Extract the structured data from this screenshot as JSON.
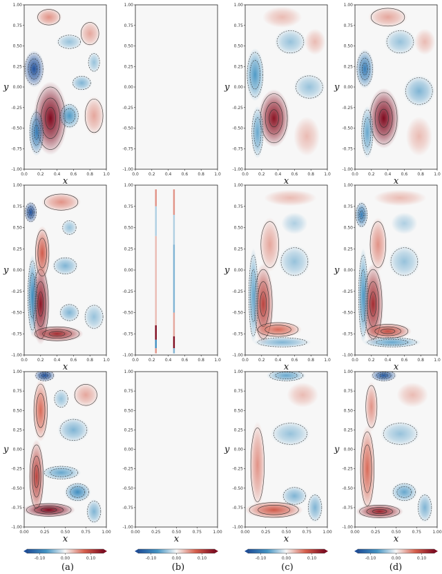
{
  "figure": {
    "panel_labels": [
      "(a)",
      "(b)",
      "(c)",
      "(d)"
    ],
    "xlabel": "x",
    "ylabel": "y"
  },
  "chart_data": {
    "type": "heatmap",
    "rows": 3,
    "columns": 4,
    "colormap": {
      "low": "#1f4f99",
      "mid": "#f7f7f7",
      "high": "#7f0a1f"
    },
    "colorbar": {
      "range": [
        -0.15,
        0.15
      ],
      "ticks": [
        -0.1,
        0.0,
        0.1
      ],
      "tick_labels": [
        "-0.10",
        "0.00",
        "0.10"
      ]
    },
    "column_settings": [
      {
        "label": "(a)",
        "colorbar_ticks": [
          "-0.10",
          "0.00",
          "0.10"
        ]
      },
      {
        "label": "(b)",
        "colorbar_ticks": [
          "-0.10",
          "0.00",
          "0.10"
        ]
      },
      {
        "label": "(c)",
        "colorbar_ticks": [
          "-0.10",
          "0.00",
          "0.10"
        ]
      },
      {
        "label": "(d)",
        "colorbar_ticks": [
          "-0.10",
          "0.00",
          "0.10"
        ]
      }
    ],
    "axes": {
      "x_ticks_rows_1_2": [
        "0.0",
        "0.2",
        "0.4",
        "0.6",
        "0.8",
        "1.0"
      ],
      "x_ticks_row_3": [
        "0.00",
        "0.25",
        "0.50",
        "0.75",
        "1.00"
      ],
      "y_ticks": [
        "1.00",
        "0.75",
        "0.50",
        "0.25",
        "0.00",
        "-0.25",
        "-0.50",
        "-0.75",
        "-1.00"
      ],
      "xlim": [
        0,
        1
      ],
      "ylim": [
        -1,
        1
      ]
    },
    "panels": [
      {
        "row": 0,
        "col": 0,
        "blobs": [
          {
            "x": 0.32,
            "y": -0.38,
            "sx": 0.13,
            "sy": 0.28,
            "a": 0.16
          },
          {
            "x": 0.12,
            "y": 0.22,
            "sx": 0.08,
            "sy": 0.14,
            "a": -0.15
          },
          {
            "x": 0.15,
            "y": -0.55,
            "sx": 0.06,
            "sy": 0.18,
            "a": -0.1
          },
          {
            "x": 0.55,
            "y": -0.35,
            "sx": 0.08,
            "sy": 0.1,
            "a": -0.07
          },
          {
            "x": 0.7,
            "y": 0.05,
            "sx": 0.08,
            "sy": 0.06,
            "a": -0.05
          },
          {
            "x": 0.55,
            "y": 0.55,
            "sx": 0.1,
            "sy": 0.06,
            "a": -0.04
          },
          {
            "x": 0.8,
            "y": 0.65,
            "sx": 0.08,
            "sy": 0.1,
            "a": 0.04
          },
          {
            "x": 0.85,
            "y": -0.35,
            "sx": 0.08,
            "sy": 0.15,
            "a": 0.04
          },
          {
            "x": 0.3,
            "y": 0.85,
            "sx": 0.1,
            "sy": 0.07,
            "a": 0.05
          },
          {
            "x": 0.85,
            "y": 0.3,
            "sx": 0.05,
            "sy": 0.08,
            "a": -0.04
          }
        ]
      },
      {
        "row": 0,
        "col": 1,
        "blobs": []
      },
      {
        "row": 0,
        "col": 2,
        "blobs": [
          {
            "x": 0.35,
            "y": -0.38,
            "sx": 0.12,
            "sy": 0.22,
            "a": 0.14
          },
          {
            "x": 0.12,
            "y": 0.15,
            "sx": 0.07,
            "sy": 0.2,
            "a": -0.07
          },
          {
            "x": 0.15,
            "y": -0.55,
            "sx": 0.05,
            "sy": 0.2,
            "a": -0.06
          },
          {
            "x": 0.78,
            "y": 0.0,
            "sx": 0.12,
            "sy": 0.1,
            "a": -0.04
          },
          {
            "x": 0.55,
            "y": 0.55,
            "sx": 0.12,
            "sy": 0.1,
            "a": -0.04
          },
          {
            "x": 0.85,
            "y": 0.55,
            "sx": 0.08,
            "sy": 0.1,
            "a": 0.03
          },
          {
            "x": 0.45,
            "y": 0.85,
            "sx": 0.15,
            "sy": 0.08,
            "a": 0.03
          },
          {
            "x": 0.75,
            "y": -0.6,
            "sx": 0.1,
            "sy": 0.15,
            "a": 0.03
          }
        ]
      },
      {
        "row": 0,
        "col": 3,
        "blobs": [
          {
            "x": 0.35,
            "y": -0.38,
            "sx": 0.12,
            "sy": 0.23,
            "a": 0.15
          },
          {
            "x": 0.12,
            "y": 0.22,
            "sx": 0.07,
            "sy": 0.15,
            "a": -0.1
          },
          {
            "x": 0.15,
            "y": -0.55,
            "sx": 0.05,
            "sy": 0.2,
            "a": -0.06
          },
          {
            "x": 0.78,
            "y": -0.05,
            "sx": 0.12,
            "sy": 0.12,
            "a": -0.05
          },
          {
            "x": 0.55,
            "y": 0.55,
            "sx": 0.12,
            "sy": 0.1,
            "a": -0.04
          },
          {
            "x": 0.85,
            "y": 0.55,
            "sx": 0.08,
            "sy": 0.1,
            "a": 0.03
          },
          {
            "x": 0.4,
            "y": 0.85,
            "sx": 0.15,
            "sy": 0.08,
            "a": 0.04
          },
          {
            "x": 0.78,
            "y": -0.6,
            "sx": 0.1,
            "sy": 0.15,
            "a": 0.03
          }
        ]
      },
      {
        "row": 1,
        "col": 0,
        "blobs": [
          {
            "x": 0.2,
            "y": -0.4,
            "sx": 0.07,
            "sy": 0.3,
            "a": 0.14
          },
          {
            "x": 0.4,
            "y": -0.75,
            "sx": 0.2,
            "sy": 0.06,
            "a": 0.12
          },
          {
            "x": 0.22,
            "y": 0.2,
            "sx": 0.06,
            "sy": 0.2,
            "a": 0.08
          },
          {
            "x": 0.08,
            "y": 0.68,
            "sx": 0.05,
            "sy": 0.08,
            "a": -0.15
          },
          {
            "x": 0.1,
            "y": -0.3,
            "sx": 0.04,
            "sy": 0.3,
            "a": -0.08
          },
          {
            "x": 0.5,
            "y": 0.05,
            "sx": 0.1,
            "sy": 0.07,
            "a": -0.05
          },
          {
            "x": 0.55,
            "y": 0.5,
            "sx": 0.06,
            "sy": 0.06,
            "a": -0.04
          },
          {
            "x": 0.55,
            "y": -0.5,
            "sx": 0.08,
            "sy": 0.07,
            "a": -0.05
          },
          {
            "x": 0.45,
            "y": 0.8,
            "sx": 0.15,
            "sy": 0.07,
            "a": 0.05
          },
          {
            "x": 0.85,
            "y": -0.55,
            "sx": 0.08,
            "sy": 0.1,
            "a": -0.04
          }
        ]
      },
      {
        "row": 1,
        "col": 1,
        "blobs": []
      },
      {
        "row": 1,
        "col": 2,
        "blobs": [
          {
            "x": 0.22,
            "y": -0.4,
            "sx": 0.08,
            "sy": 0.3,
            "a": 0.1
          },
          {
            "x": 0.4,
            "y": -0.7,
            "sx": 0.18,
            "sy": 0.06,
            "a": 0.07
          },
          {
            "x": 0.3,
            "y": 0.3,
            "sx": 0.08,
            "sy": 0.2,
            "a": 0.04
          },
          {
            "x": 0.1,
            "y": -0.3,
            "sx": 0.04,
            "sy": 0.35,
            "a": -0.06
          },
          {
            "x": 0.45,
            "y": -0.85,
            "sx": 0.22,
            "sy": 0.04,
            "a": -0.05
          },
          {
            "x": 0.6,
            "y": 0.1,
            "sx": 0.12,
            "sy": 0.12,
            "a": -0.04
          },
          {
            "x": 0.6,
            "y": 0.55,
            "sx": 0.1,
            "sy": 0.08,
            "a": -0.03
          },
          {
            "x": 0.55,
            "y": 0.85,
            "sx": 0.2,
            "sy": 0.06,
            "a": 0.03
          }
        ]
      },
      {
        "row": 1,
        "col": 3,
        "blobs": [
          {
            "x": 0.22,
            "y": -0.4,
            "sx": 0.08,
            "sy": 0.3,
            "a": 0.12
          },
          {
            "x": 0.4,
            "y": -0.72,
            "sx": 0.18,
            "sy": 0.06,
            "a": 0.09
          },
          {
            "x": 0.28,
            "y": 0.3,
            "sx": 0.07,
            "sy": 0.2,
            "a": 0.05
          },
          {
            "x": 0.08,
            "y": 0.65,
            "sx": 0.05,
            "sy": 0.1,
            "a": -0.1
          },
          {
            "x": 0.1,
            "y": -0.3,
            "sx": 0.04,
            "sy": 0.35,
            "a": -0.07
          },
          {
            "x": 0.45,
            "y": -0.85,
            "sx": 0.22,
            "sy": 0.04,
            "a": -0.06
          },
          {
            "x": 0.6,
            "y": 0.1,
            "sx": 0.12,
            "sy": 0.12,
            "a": -0.04
          },
          {
            "x": 0.6,
            "y": 0.55,
            "sx": 0.1,
            "sy": 0.08,
            "a": -0.03
          },
          {
            "x": 0.55,
            "y": 0.85,
            "sx": 0.2,
            "sy": 0.06,
            "a": 0.03
          }
        ]
      },
      {
        "row": 2,
        "col": 0,
        "blobs": [
          {
            "x": 0.3,
            "y": -0.78,
            "sx": 0.2,
            "sy": 0.06,
            "a": 0.15
          },
          {
            "x": 0.15,
            "y": -0.35,
            "sx": 0.06,
            "sy": 0.3,
            "a": 0.1
          },
          {
            "x": 0.2,
            "y": 0.5,
            "sx": 0.06,
            "sy": 0.25,
            "a": 0.07
          },
          {
            "x": 0.25,
            "y": 0.95,
            "sx": 0.08,
            "sy": 0.05,
            "a": -0.15
          },
          {
            "x": 0.65,
            "y": -0.55,
            "sx": 0.1,
            "sy": 0.08,
            "a": -0.08
          },
          {
            "x": 0.45,
            "y": -0.3,
            "sx": 0.15,
            "sy": 0.06,
            "a": -0.06
          },
          {
            "x": 0.6,
            "y": 0.25,
            "sx": 0.12,
            "sy": 0.1,
            "a": -0.05
          },
          {
            "x": 0.45,
            "y": 0.65,
            "sx": 0.06,
            "sy": 0.08,
            "a": -0.04
          },
          {
            "x": 0.75,
            "y": 0.7,
            "sx": 0.1,
            "sy": 0.1,
            "a": 0.04
          },
          {
            "x": 0.85,
            "y": -0.8,
            "sx": 0.06,
            "sy": 0.1,
            "a": -0.05
          }
        ]
      },
      {
        "row": 2,
        "col": 1,
        "blobs": []
      },
      {
        "row": 2,
        "col": 2,
        "blobs": [
          {
            "x": 0.35,
            "y": -0.78,
            "sx": 0.22,
            "sy": 0.07,
            "a": 0.08
          },
          {
            "x": 0.15,
            "y": -0.2,
            "sx": 0.06,
            "sy": 0.35,
            "a": 0.05
          },
          {
            "x": 0.5,
            "y": 0.95,
            "sx": 0.15,
            "sy": 0.05,
            "a": -0.06
          },
          {
            "x": 0.6,
            "y": -0.6,
            "sx": 0.1,
            "sy": 0.08,
            "a": -0.05
          },
          {
            "x": 0.55,
            "y": 0.2,
            "sx": 0.15,
            "sy": 0.1,
            "a": -0.04
          },
          {
            "x": 0.85,
            "y": -0.75,
            "sx": 0.06,
            "sy": 0.12,
            "a": -0.05
          },
          {
            "x": 0.7,
            "y": 0.7,
            "sx": 0.12,
            "sy": 0.1,
            "a": 0.03
          }
        ]
      },
      {
        "row": 2,
        "col": 3,
        "blobs": [
          {
            "x": 0.3,
            "y": -0.8,
            "sx": 0.18,
            "sy": 0.06,
            "a": 0.13
          },
          {
            "x": 0.15,
            "y": -0.25,
            "sx": 0.06,
            "sy": 0.35,
            "a": 0.07
          },
          {
            "x": 0.35,
            "y": 0.95,
            "sx": 0.1,
            "sy": 0.05,
            "a": -0.14
          },
          {
            "x": 0.6,
            "y": -0.55,
            "sx": 0.1,
            "sy": 0.08,
            "a": -0.06
          },
          {
            "x": 0.55,
            "y": 0.2,
            "sx": 0.15,
            "sy": 0.1,
            "a": -0.04
          },
          {
            "x": 0.85,
            "y": -0.75,
            "sx": 0.06,
            "sy": 0.12,
            "a": -0.05
          },
          {
            "x": 0.7,
            "y": 0.7,
            "sx": 0.12,
            "sy": 0.1,
            "a": 0.03
          },
          {
            "x": 0.2,
            "y": 0.55,
            "sx": 0.05,
            "sy": 0.2,
            "a": 0.05
          }
        ]
      }
    ],
    "special_panel": {
      "row": 1,
      "col": 1,
      "lines": [
        {
          "x": 0.25,
          "segments": [
            [
              0.95,
              0.05
            ],
            [
              0.75,
              -0.03
            ],
            [
              0.4,
              0.03
            ],
            [
              -0.65,
              0.15
            ],
            [
              -0.82,
              -0.08
            ],
            [
              -0.92,
              0.05
            ]
          ]
        },
        {
          "x": 0.47,
          "segments": [
            [
              0.95,
              0.05
            ],
            [
              0.65,
              -0.03
            ],
            [
              0.3,
              -0.05
            ],
            [
              -0.5,
              0.04
            ],
            [
              -0.78,
              0.15
            ],
            [
              -0.92,
              -0.05
            ]
          ]
        }
      ]
    }
  }
}
